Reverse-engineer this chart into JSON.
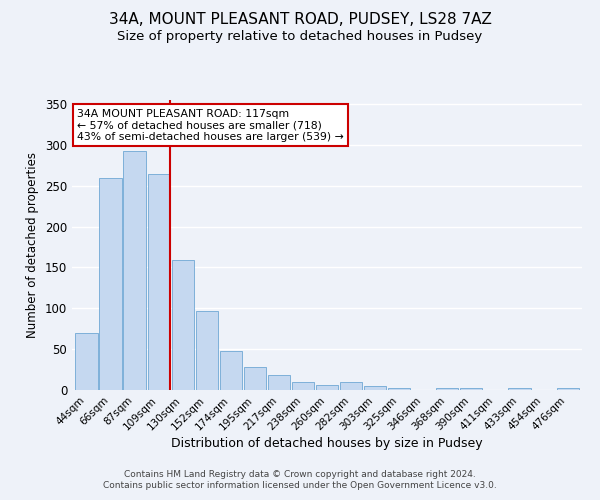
{
  "title": "34A, MOUNT PLEASANT ROAD, PUDSEY, LS28 7AZ",
  "subtitle": "Size of property relative to detached houses in Pudsey",
  "xlabel": "Distribution of detached houses by size in Pudsey",
  "ylabel": "Number of detached properties",
  "bar_labels": [
    "44sqm",
    "66sqm",
    "87sqm",
    "109sqm",
    "130sqm",
    "152sqm",
    "174sqm",
    "195sqm",
    "217sqm",
    "238sqm",
    "260sqm",
    "282sqm",
    "303sqm",
    "325sqm",
    "346sqm",
    "368sqm",
    "390sqm",
    "411sqm",
    "433sqm",
    "454sqm",
    "476sqm"
  ],
  "bar_heights": [
    70,
    260,
    292,
    265,
    159,
    97,
    48,
    28,
    18,
    10,
    6,
    10,
    5,
    2,
    0,
    3,
    2,
    0,
    2,
    0,
    2
  ],
  "bar_color": "#c5d8f0",
  "bar_edge_color": "#6fa8d4",
  "vline_x_index": 3,
  "vline_color": "#cc0000",
  "annotation_text": "34A MOUNT PLEASANT ROAD: 117sqm\n← 57% of detached houses are smaller (718)\n43% of semi-detached houses are larger (539) →",
  "annotation_box_color": "white",
  "annotation_box_edge_color": "#cc0000",
  "ylim": [
    0,
    355
  ],
  "yticks": [
    0,
    50,
    100,
    150,
    200,
    250,
    300,
    350
  ],
  "footer_line1": "Contains HM Land Registry data © Crown copyright and database right 2024.",
  "footer_line2": "Contains public sector information licensed under the Open Government Licence v3.0.",
  "background_color": "#eef2f9",
  "plot_background_color": "#eef2f9",
  "grid_color": "#ffffff",
  "title_fontsize": 11,
  "subtitle_fontsize": 9.5,
  "footer_fontsize": 6.5
}
